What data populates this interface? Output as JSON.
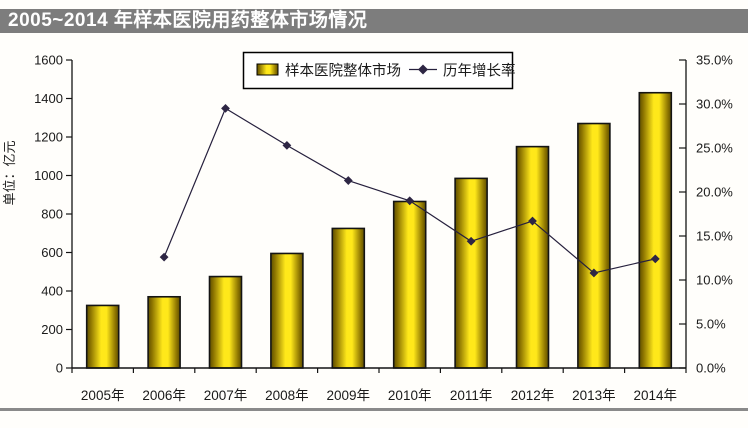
{
  "page": {
    "title": "2005~2014 年样本医院用药整体市场情况"
  },
  "chart_data": {
    "type": "combo",
    "title": "2005~2014 年样本医院用药整体市场情况",
    "categories": [
      "2005年",
      "2006年",
      "2007年",
      "2008年",
      "2009年",
      "2010年",
      "2011年",
      "2012年",
      "2013年",
      "2014年"
    ],
    "series": [
      {
        "name": "样本医院整体市场",
        "type": "bar",
        "axis": "left",
        "unit": "亿元",
        "values": [
          325,
          370,
          475,
          595,
          725,
          865,
          985,
          1150,
          1270,
          1430
        ]
      },
      {
        "name": "历年增长率",
        "type": "line",
        "axis": "right",
        "unit": "%",
        "values": [
          null,
          12.6,
          29.5,
          25.3,
          21.3,
          19.0,
          14.4,
          16.7,
          10.8,
          12.4
        ]
      }
    ],
    "left_axis": {
      "title": "单位：亿元",
      "min": 0,
      "max": 1600,
      "step": 200,
      "ticks": [
        "0",
        "200",
        "400",
        "600",
        "800",
        "1000",
        "1200",
        "1400",
        "1600"
      ]
    },
    "right_axis": {
      "min": 0,
      "max": 35,
      "step": 5,
      "ticks": [
        "0.0%",
        "5.0%",
        "10.0%",
        "15.0%",
        "20.0%",
        "25.0%",
        "30.0%",
        "35.0%"
      ]
    },
    "legend": {
      "position": "top-center"
    },
    "grid": false,
    "colors": {
      "bar_center": "#ffe81a",
      "bar_mid": "#8a7200",
      "bar_edge": "#5e4f00",
      "bar_outline": "#141414",
      "line": "#26203d",
      "marker": "#2e2644",
      "axis": "#141414",
      "text": "#1a1a1a",
      "title_bar_bg": "#7d7d7d",
      "title_text": "#ffffff",
      "bottom_rule": "#8a8a8a",
      "background": "#fffefb"
    }
  }
}
